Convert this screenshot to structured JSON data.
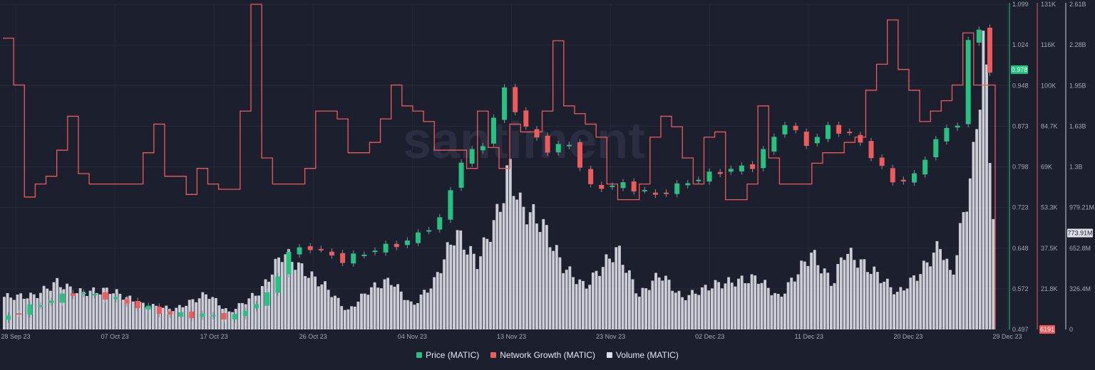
{
  "watermark": "santiment",
  "legend": [
    {
      "label": "Price (MATIC)",
      "color": "#26c281"
    },
    {
      "label": "Network Growth (MATIC)",
      "color": "#ef5a5a"
    },
    {
      "label": "Volume (MATIC)",
      "color": "#dfe1ea"
    }
  ],
  "chart_data": {
    "type": "line",
    "x_tick_labels": [
      "28 Sep 23",
      "07 Oct 23",
      "17 Oct 23",
      "26 Oct 23",
      "04 Nov 23",
      "13 Nov 23",
      "23 Nov 23",
      "02 Dec 23",
      "11 Dec 23",
      "20 Dec 23",
      "29 Dec 23"
    ],
    "x_range": [
      "2023-09-28",
      "2023-12-29"
    ],
    "axes": {
      "price": {
        "ticks": [
          "1.099",
          "1.024",
          "0.948",
          "0.873",
          "0.798",
          "0.723",
          "0.648",
          "0.572",
          "0.497"
        ],
        "ylim": [
          0.497,
          1.099
        ],
        "current": "0.978",
        "color": "#26c281"
      },
      "network_growth": {
        "ticks": [
          "131K",
          "116K",
          "100K",
          "84.7K",
          "69K",
          "53.3K",
          "37.5K",
          "21.8K",
          "6191"
        ],
        "ylim": [
          6191,
          131000
        ],
        "current": "6191",
        "color": "#ef5a5a"
      },
      "volume": {
        "ticks": [
          "2.61B",
          "2.28B",
          "1.95B",
          "1.63B",
          "1.3B",
          "979.21M",
          "652.8M",
          "326.4M",
          "0"
        ],
        "ylim": [
          0,
          2610000000
        ],
        "current": "773.91M",
        "color": "#dfe1ea"
      }
    },
    "series": [
      {
        "name": "Price (MATIC)",
        "type": "candlestick",
        "anchors": [
          {
            "date": "2023-09-28",
            "value": 0.515
          },
          {
            "date": "2023-10-02",
            "value": 0.545
          },
          {
            "date": "2023-10-05",
            "value": 0.565
          },
          {
            "date": "2023-10-08",
            "value": 0.558
          },
          {
            "date": "2023-10-11",
            "value": 0.54
          },
          {
            "date": "2023-10-14",
            "value": 0.525
          },
          {
            "date": "2023-10-17",
            "value": 0.523
          },
          {
            "date": "2023-10-20",
            "value": 0.52
          },
          {
            "date": "2023-10-23",
            "value": 0.56
          },
          {
            "date": "2023-10-25",
            "value": 0.64
          },
          {
            "date": "2023-10-27",
            "value": 0.65
          },
          {
            "date": "2023-10-30",
            "value": 0.625
          },
          {
            "date": "2023-11-02",
            "value": 0.645
          },
          {
            "date": "2023-11-05",
            "value": 0.66
          },
          {
            "date": "2023-11-08",
            "value": 0.7
          },
          {
            "date": "2023-11-10",
            "value": 0.81
          },
          {
            "date": "2023-11-12",
            "value": 0.84
          },
          {
            "date": "2023-11-14",
            "value": 0.94
          },
          {
            "date": "2023-11-16",
            "value": 0.87
          },
          {
            "date": "2023-11-18",
            "value": 0.83
          },
          {
            "date": "2023-11-20",
            "value": 0.84
          },
          {
            "date": "2023-11-22",
            "value": 0.76
          },
          {
            "date": "2023-11-25",
            "value": 0.765
          },
          {
            "date": "2023-11-28",
            "value": 0.745
          },
          {
            "date": "2023-12-01",
            "value": 0.77
          },
          {
            "date": "2023-12-04",
            "value": 0.79
          },
          {
            "date": "2023-12-07",
            "value": 0.8
          },
          {
            "date": "2023-12-10",
            "value": 0.88
          },
          {
            "date": "2023-12-12",
            "value": 0.84
          },
          {
            "date": "2023-12-14",
            "value": 0.87
          },
          {
            "date": "2023-12-16",
            "value": 0.86
          },
          {
            "date": "2023-12-18",
            "value": 0.82
          },
          {
            "date": "2023-12-20",
            "value": 0.77
          },
          {
            "date": "2023-12-22",
            "value": 0.78
          },
          {
            "date": "2023-12-24",
            "value": 0.85
          },
          {
            "date": "2023-12-26",
            "value": 0.88
          },
          {
            "date": "2023-12-27",
            "value": 1.03
          },
          {
            "date": "2023-12-28",
            "value": 1.05
          },
          {
            "date": "2023-12-29",
            "value": 0.978
          }
        ]
      },
      {
        "name": "Network Growth (MATIC)",
        "type": "step-line",
        "anchors": [
          {
            "date": "2023-09-28",
            "value": 118000
          },
          {
            "date": "2023-09-29",
            "value": 100000
          },
          {
            "date": "2023-09-30",
            "value": 57000
          },
          {
            "date": "2023-10-01",
            "value": 62000
          },
          {
            "date": "2023-10-02",
            "value": 65000
          },
          {
            "date": "2023-10-03",
            "value": 75000
          },
          {
            "date": "2023-10-04",
            "value": 88000
          },
          {
            "date": "2023-10-05",
            "value": 66000
          },
          {
            "date": "2023-10-06",
            "value": 62000
          },
          {
            "date": "2023-10-10",
            "value": 62000
          },
          {
            "date": "2023-10-11",
            "value": 74000
          },
          {
            "date": "2023-10-12",
            "value": 85000
          },
          {
            "date": "2023-10-13",
            "value": 65000
          },
          {
            "date": "2023-10-15",
            "value": 58000
          },
          {
            "date": "2023-10-16",
            "value": 68000
          },
          {
            "date": "2023-10-17",
            "value": 62000
          },
          {
            "date": "2023-10-18",
            "value": 60000
          },
          {
            "date": "2023-10-19",
            "value": 60000
          },
          {
            "date": "2023-10-20",
            "value": 90000
          },
          {
            "date": "2023-10-21",
            "value": 131000
          },
          {
            "date": "2023-10-22",
            "value": 72000
          },
          {
            "date": "2023-10-23",
            "value": 62000
          },
          {
            "date": "2023-10-24",
            "value": 62000
          },
          {
            "date": "2023-10-26",
            "value": 68000
          },
          {
            "date": "2023-10-27",
            "value": 90000
          },
          {
            "date": "2023-10-29",
            "value": 87000
          },
          {
            "date": "2023-10-30",
            "value": 74000
          },
          {
            "date": "2023-11-01",
            "value": 78000
          },
          {
            "date": "2023-11-02",
            "value": 87000
          },
          {
            "date": "2023-11-03",
            "value": 100000
          },
          {
            "date": "2023-11-04",
            "value": 92000
          },
          {
            "date": "2023-11-05",
            "value": 90000
          },
          {
            "date": "2023-11-06",
            "value": 86000
          },
          {
            "date": "2023-11-07",
            "value": 75000
          },
          {
            "date": "2023-11-09",
            "value": 75000
          },
          {
            "date": "2023-11-10",
            "value": 68000
          },
          {
            "date": "2023-11-11",
            "value": 90000
          },
          {
            "date": "2023-11-12",
            "value": 76000
          },
          {
            "date": "2023-11-13",
            "value": 68000
          },
          {
            "date": "2023-11-14",
            "value": 85000
          },
          {
            "date": "2023-11-15",
            "value": 82000
          },
          {
            "date": "2023-11-17",
            "value": 90000
          },
          {
            "date": "2023-11-18",
            "value": 117000
          },
          {
            "date": "2023-11-19",
            "value": 92000
          },
          {
            "date": "2023-11-20",
            "value": 89000
          },
          {
            "date": "2023-11-21",
            "value": 85000
          },
          {
            "date": "2023-11-22",
            "value": 80000
          },
          {
            "date": "2023-11-23",
            "value": 62000
          },
          {
            "date": "2023-11-24",
            "value": 56000
          },
          {
            "date": "2023-11-26",
            "value": 62000
          },
          {
            "date": "2023-11-27",
            "value": 80000
          },
          {
            "date": "2023-11-28",
            "value": 88000
          },
          {
            "date": "2023-11-29",
            "value": 84000
          },
          {
            "date": "2023-11-30",
            "value": 72000
          },
          {
            "date": "2023-12-01",
            "value": 62000
          },
          {
            "date": "2023-12-02",
            "value": 80000
          },
          {
            "date": "2023-12-03",
            "value": 82000
          },
          {
            "date": "2023-12-04",
            "value": 56000
          },
          {
            "date": "2023-12-05",
            "value": 56000
          },
          {
            "date": "2023-12-06",
            "value": 62000
          },
          {
            "date": "2023-12-07",
            "value": 92000
          },
          {
            "date": "2023-12-08",
            "value": 72000
          },
          {
            "date": "2023-12-09",
            "value": 62000
          },
          {
            "date": "2023-12-12",
            "value": 70000
          },
          {
            "date": "2023-12-13",
            "value": 74000
          },
          {
            "date": "2023-12-15",
            "value": 78000
          },
          {
            "date": "2023-12-16",
            "value": 80000
          },
          {
            "date": "2023-12-17",
            "value": 98000
          },
          {
            "date": "2023-12-18",
            "value": 108000
          },
          {
            "date": "2023-12-19",
            "value": 125000
          },
          {
            "date": "2023-12-20",
            "value": 106000
          },
          {
            "date": "2023-12-21",
            "value": 98000
          },
          {
            "date": "2023-12-22",
            "value": 86000
          },
          {
            "date": "2023-12-23",
            "value": 90000
          },
          {
            "date": "2023-12-24",
            "value": 94000
          },
          {
            "date": "2023-12-25",
            "value": 100000
          },
          {
            "date": "2023-12-26",
            "value": 120000
          },
          {
            "date": "2023-12-27",
            "value": 100000
          },
          {
            "date": "2023-12-28",
            "value": 100000
          },
          {
            "date": "2023-12-29",
            "value": 6191
          }
        ]
      },
      {
        "name": "Volume (MATIC)",
        "type": "bar",
        "anchors": [
          {
            "date": "2023-09-28",
            "value": 290000000
          },
          {
            "date": "2023-10-01",
            "value": 300000000
          },
          {
            "date": "2023-10-03",
            "value": 420000000
          },
          {
            "date": "2023-10-05",
            "value": 330000000
          },
          {
            "date": "2023-10-08",
            "value": 350000000
          },
          {
            "date": "2023-10-11",
            "value": 220000000
          },
          {
            "date": "2023-10-14",
            "value": 180000000
          },
          {
            "date": "2023-10-17",
            "value": 320000000
          },
          {
            "date": "2023-10-19",
            "value": 150000000
          },
          {
            "date": "2023-10-22",
            "value": 350000000
          },
          {
            "date": "2023-10-24",
            "value": 690000000
          },
          {
            "date": "2023-10-26",
            "value": 520000000
          },
          {
            "date": "2023-10-28",
            "value": 380000000
          },
          {
            "date": "2023-10-30",
            "value": 160000000
          },
          {
            "date": "2023-11-01",
            "value": 360000000
          },
          {
            "date": "2023-11-03",
            "value": 440000000
          },
          {
            "date": "2023-11-05",
            "value": 210000000
          },
          {
            "date": "2023-11-07",
            "value": 420000000
          },
          {
            "date": "2023-11-09",
            "value": 870000000
          },
          {
            "date": "2023-11-11",
            "value": 600000000
          },
          {
            "date": "2023-11-13",
            "value": 1050000000
          },
          {
            "date": "2023-11-14",
            "value": 1450000000
          },
          {
            "date": "2023-11-15",
            "value": 1100000000
          },
          {
            "date": "2023-11-17",
            "value": 950000000
          },
          {
            "date": "2023-11-19",
            "value": 560000000
          },
          {
            "date": "2023-11-21",
            "value": 380000000
          },
          {
            "date": "2023-11-24",
            "value": 720000000
          },
          {
            "date": "2023-11-26",
            "value": 300000000
          },
          {
            "date": "2023-11-28",
            "value": 500000000
          },
          {
            "date": "2023-11-30",
            "value": 280000000
          },
          {
            "date": "2023-12-03",
            "value": 400000000
          },
          {
            "date": "2023-12-07",
            "value": 460000000
          },
          {
            "date": "2023-12-09",
            "value": 280000000
          },
          {
            "date": "2023-12-12",
            "value": 680000000
          },
          {
            "date": "2023-12-14",
            "value": 400000000
          },
          {
            "date": "2023-12-15",
            "value": 700000000
          },
          {
            "date": "2023-12-18",
            "value": 500000000
          },
          {
            "date": "2023-12-20",
            "value": 320000000
          },
          {
            "date": "2023-12-22",
            "value": 500000000
          },
          {
            "date": "2023-12-24",
            "value": 760000000
          },
          {
            "date": "2023-12-25",
            "value": 450000000
          },
          {
            "date": "2023-12-27",
            "value": 1500000000
          },
          {
            "date": "2023-12-28",
            "value": 2600000000
          },
          {
            "date": "2023-12-29",
            "value": 773910000
          }
        ]
      }
    ],
    "grid": true,
    "legend_position": "bottom-center"
  }
}
